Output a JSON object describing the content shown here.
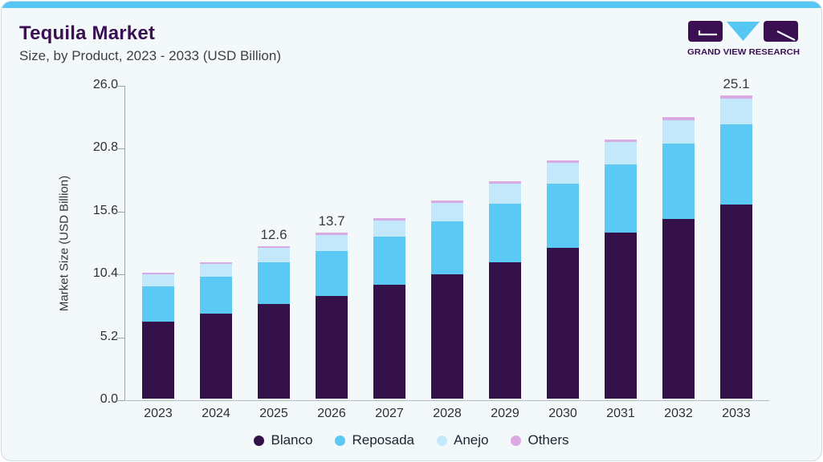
{
  "page": {
    "title": "Tequila Market",
    "subtitle": "Size, by Product, 2023 - 2033 (USD Billion)",
    "logo_text": "GRAND VIEW RESEARCH"
  },
  "colors": {
    "accent_bar": "#57c6f3",
    "title_purple": "#3a1053",
    "card_background": "#f3f8fb"
  },
  "chart_data": {
    "type": "bar",
    "stacked": true,
    "title": "Tequila Market Size, by Product, 2023 - 2033 (USD Billion)",
    "categories": [
      "2023",
      "2024",
      "2025",
      "2026",
      "2027",
      "2028",
      "2029",
      "2030",
      "2031",
      "2032",
      "2033"
    ],
    "series": [
      {
        "name": "Blanco",
        "color": "#341249",
        "values": [
          6.4,
          7.0,
          7.8,
          8.5,
          9.4,
          10.3,
          11.3,
          12.5,
          13.7,
          14.85,
          16.05
        ]
      },
      {
        "name": "Reposada",
        "color": "#5cc9f5",
        "values": [
          2.9,
          3.1,
          3.5,
          3.7,
          4.0,
          4.35,
          4.85,
          5.25,
          5.7,
          6.25,
          6.65
        ]
      },
      {
        "name": "Anejo",
        "color": "#c3e8fa",
        "values": [
          0.95,
          1.05,
          1.15,
          1.3,
          1.3,
          1.55,
          1.65,
          1.75,
          1.8,
          1.95,
          2.1
        ]
      },
      {
        "name": "Others",
        "color": "#d9aae3",
        "values": [
          0.15,
          0.15,
          0.15,
          0.2,
          0.2,
          0.2,
          0.2,
          0.2,
          0.2,
          0.25,
          0.3
        ]
      }
    ],
    "totals": [
      10.4,
      11.3,
      12.6,
      13.7,
      14.9,
      16.4,
      18.0,
      19.7,
      21.4,
      23.3,
      25.1
    ],
    "bar_labels": {
      "2025": "12.6",
      "2026": "13.7",
      "2033": "25.1"
    },
    "xlabel": "",
    "ylabel": "Market Size (USD Billion)",
    "ylim": [
      0,
      26
    ],
    "ytick_labels": [
      "0.0",
      "5.2",
      "10.4",
      "15.6",
      "20.8",
      "26.0"
    ],
    "yticks": [
      0.0,
      5.2,
      10.4,
      15.6,
      20.8,
      26.0
    ],
    "grid": false,
    "legend_position": "bottom"
  }
}
